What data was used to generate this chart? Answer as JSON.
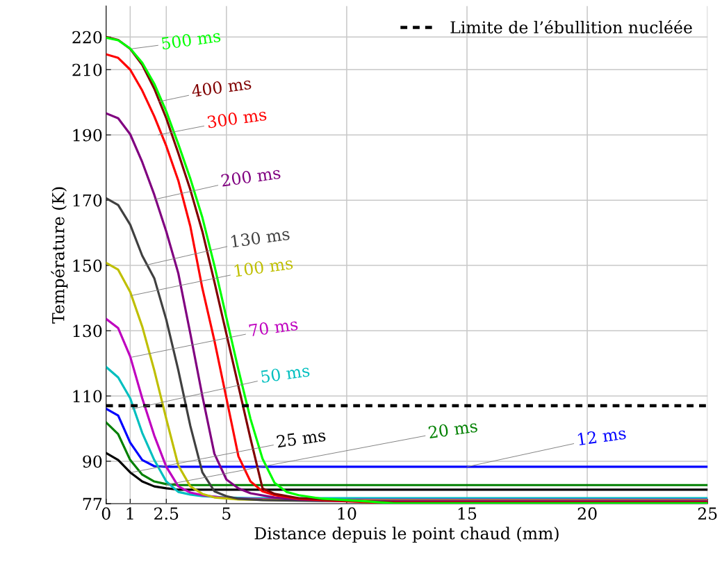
{
  "chart_data": {
    "type": "line",
    "xlabel": "Distance depuis le point chaud (mm)",
    "ylabel": "Température (K)",
    "xlim": [
      0,
      25
    ],
    "ylim": [
      77,
      229.5
    ],
    "xticks": [
      0,
      1,
      2.5,
      5,
      10,
      15,
      20,
      25
    ],
    "yticks": [
      77,
      90,
      110,
      130,
      150,
      170,
      190,
      210,
      220
    ],
    "grid": true,
    "legend": "top right",
    "marker": "none",
    "line_style": "solid",
    "series": [
      {
        "color": "#0000ff",
        "x": [
          0,
          0.5,
          1,
          1.5,
          2,
          2.5,
          25
        ],
        "values": [
          106.1,
          104,
          95.7,
          90.4,
          88.5,
          88.3,
          88.3
        ]
      },
      {
        "color": "#008000",
        "x": [
          0,
          0.5,
          1,
          1.5,
          2,
          2.5,
          3,
          25
        ],
        "values": [
          101.9,
          98.3,
          90.4,
          85.9,
          83.8,
          83,
          82.7,
          82.7
        ]
      },
      {
        "color": "#000000",
        "x": [
          0,
          0.5,
          1,
          1.5,
          2,
          2.5,
          3,
          25
        ],
        "values": [
          92.5,
          90.4,
          86.6,
          83.8,
          82.3,
          81.7,
          81.3,
          81.3
        ]
      },
      {
        "color": "#00bfbf",
        "x": [
          0,
          0.5,
          1,
          1.5,
          2,
          2.5,
          3,
          3.5,
          4,
          5,
          6,
          25
        ],
        "values": [
          118.9,
          115.7,
          109.3,
          98.7,
          90.4,
          83.8,
          80.6,
          79.8,
          79.3,
          78.9,
          78.7,
          78.7
        ]
      },
      {
        "color": "#bf00bf",
        "x": [
          0,
          0.5,
          1,
          1.5,
          2,
          2.5,
          3,
          3.5,
          4,
          5,
          7,
          9,
          25
        ],
        "values": [
          133.6,
          130.8,
          122.1,
          109.3,
          97.9,
          88.3,
          82.3,
          80.4,
          79.6,
          78.7,
          78.3,
          78.2,
          78.2
        ]
      },
      {
        "color": "#bfbf00",
        "x": [
          0,
          0.5,
          1,
          1.5,
          2,
          2.5,
          3,
          3.5,
          4,
          4.5,
          5.5,
          8,
          25
        ],
        "values": [
          150.8,
          148.7,
          141.9,
          131.3,
          117.9,
          103,
          88.7,
          82.3,
          80,
          78.9,
          78.3,
          78,
          78
        ]
      },
      {
        "color": "#404040",
        "x": [
          0,
          0.5,
          1,
          1.5,
          2,
          2.5,
          3,
          3.5,
          4,
          4.5,
          5,
          5.5,
          6.5,
          9,
          25
        ],
        "values": [
          170.6,
          168.5,
          162.5,
          153,
          146.1,
          133.4,
          117.9,
          100.8,
          86.6,
          80.8,
          79.3,
          78.5,
          78.1,
          77.8,
          77.8
        ]
      },
      {
        "color": "#800080",
        "x": [
          0,
          0.5,
          1,
          1.5,
          2,
          2.5,
          3,
          3.5,
          4,
          4.5,
          5,
          5.5,
          6,
          7,
          8,
          10,
          25
        ],
        "values": [
          196.6,
          195.1,
          190.2,
          181.7,
          171.7,
          160.4,
          147.6,
          129.1,
          110,
          92.3,
          84.4,
          81.7,
          80.2,
          78.9,
          78.3,
          77.7,
          77.7
        ]
      },
      {
        "color": "#ff0000",
        "x": [
          0,
          0.5,
          1,
          1.5,
          2,
          2.5,
          3,
          3.5,
          4,
          4.5,
          5,
          5.5,
          6,
          6.5,
          7,
          8,
          9,
          11,
          25
        ],
        "values": [
          214.7,
          213.6,
          210,
          203.6,
          195.7,
          186.6,
          176,
          162,
          143,
          127,
          109.3,
          91.5,
          83.8,
          80.8,
          79.6,
          78.5,
          78.1,
          77.4,
          77.4
        ]
      },
      {
        "color": "#800000",
        "x": [
          0,
          0.5,
          1,
          1.5,
          2,
          2.5,
          3,
          3.5,
          4,
          4.5,
          5,
          5.5,
          6,
          6.5,
          7,
          8,
          9,
          10,
          12,
          25
        ],
        "values": [
          220,
          219.1,
          216.4,
          211.5,
          204.2,
          195.1,
          184.4,
          173.2,
          160.4,
          145,
          129,
          113,
          97,
          81.7,
          80,
          78.7,
          78.3,
          78,
          77.3,
          77.3
        ]
      },
      {
        "color": "#00ff00",
        "x": [
          0,
          0.5,
          1,
          1.5,
          2,
          2.5,
          3,
          3.5,
          4,
          4.5,
          5,
          5.5,
          6,
          6.5,
          7,
          7.5,
          8,
          9,
          10,
          12,
          25
        ],
        "values": [
          219.8,
          219,
          216.5,
          212.1,
          205.7,
          197.2,
          187.2,
          176.6,
          164.7,
          150,
          134,
          118,
          103,
          90.8,
          83.4,
          80.6,
          79.6,
          78.5,
          78.1,
          77.1,
          77.1
        ]
      }
    ],
    "ref_lines": [
      {
        "axis": "y",
        "value": 107,
        "label": "Limite de l’ébullition nucléée",
        "color": "#000000",
        "line_style": "dashed"
      }
    ],
    "annotations": [
      {
        "text": "12 ms",
        "x": 15,
        "y": 88.3
      },
      {
        "text": "20 ms",
        "x": 2.5,
        "y": 82.8
      },
      {
        "text": "25 ms",
        "x": 1.07,
        "y": 86.6
      },
      {
        "text": "50 ms",
        "x": 1.07,
        "y": 106
      },
      {
        "text": "70 ms",
        "x": 1.07,
        "y": 121.9
      },
      {
        "text": "100 ms",
        "x": 1.07,
        "y": 140.8
      },
      {
        "text": "130 ms",
        "x": 1.6,
        "y": 150
      },
      {
        "text": "200 ms",
        "x": 2,
        "y": 170.2
      },
      {
        "text": "300 ms",
        "x": 2.17,
        "y": 190
      },
      {
        "text": "400 ms",
        "x": 2.2,
        "y": 200.2
      },
      {
        "text": "500 ms",
        "x": 1.07,
        "y": 216.4
      }
    ]
  }
}
